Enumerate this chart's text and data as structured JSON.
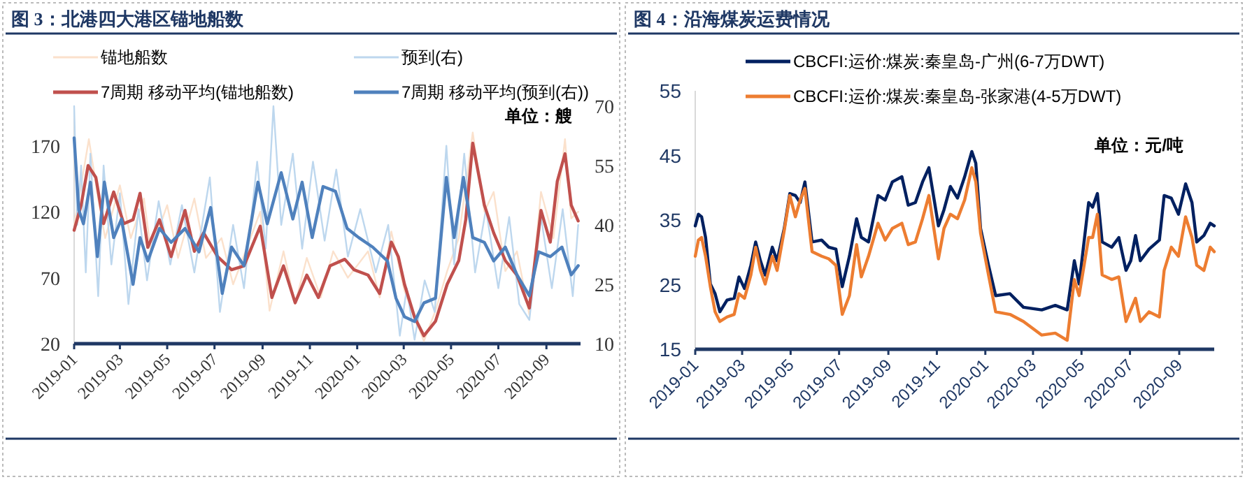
{
  "chart_data": [
    {
      "type": "line",
      "title": "图 3：北港四大港区锚地船数",
      "annotations": [
        "单位：艘"
      ],
      "legend": "top",
      "grid": false,
      "marker": "none",
      "line_style": "solid",
      "xlim": [
        "2019-01-01",
        "2020-10-15"
      ],
      "ylim": [
        20,
        200
      ],
      "y2lim": [
        10,
        70
      ],
      "xticks": [
        {
          "value": "2019-01-01",
          "label": "2019-01"
        },
        {
          "value": "2019-03-01",
          "label": "2019-03"
        },
        {
          "value": "2019-05-01",
          "label": "2019-05"
        },
        {
          "value": "2019-07-01",
          "label": "2019-07"
        },
        {
          "value": "2019-09-01",
          "label": "2019-09"
        },
        {
          "value": "2019-11-01",
          "label": "2019-11"
        },
        {
          "value": "2020-01-01",
          "label": "2020-01"
        },
        {
          "value": "2020-03-01",
          "label": "2020-03"
        },
        {
          "value": "2020-05-01",
          "label": "2020-05"
        },
        {
          "value": "2020-07-01",
          "label": "2020-07"
        },
        {
          "value": "2020-09-01",
          "label": "2020-09"
        }
      ],
      "yticks": [
        20,
        70,
        120,
        170
      ],
      "y2ticks": [
        10,
        25,
        40,
        55,
        70
      ],
      "series": [
        {
          "name": "锚地船数",
          "color": "#fbe1cc",
          "x": [
            "2019-01-01",
            "2019-01-10",
            "2019-01-20",
            "2019-02-01",
            "2019-02-10",
            "2019-03-01",
            "2019-03-15",
            "2019-04-01",
            "2019-04-10",
            "2019-05-01",
            "2019-05-15",
            "2019-06-05",
            "2019-06-20",
            "2019-07-10",
            "2019-07-25",
            "2019-08-10",
            "2019-08-29",
            "2019-09-10",
            "2019-09-28",
            "2019-10-13",
            "2019-10-28",
            "2019-11-15",
            "2019-12-01",
            "2019-12-20",
            "2020-01-15",
            "2020-01-30",
            "2020-02-14",
            "2020-03-02",
            "2020-03-15",
            "2020-03-27",
            "2020-04-11",
            "2020-04-26",
            "2020-05-11",
            "2020-05-29",
            "2020-06-13",
            "2020-06-25",
            "2020-07-10",
            "2020-07-25",
            "2020-08-10",
            "2020-08-25",
            "2020-09-10",
            "2020-09-25",
            "2020-10-03",
            "2020-10-12"
          ],
          "values": [
            110,
            140,
            175,
            130,
            100,
            140,
            100,
            130,
            90,
            125,
            85,
            130,
            85,
            100,
            65,
            90,
            120,
            45,
            90,
            50,
            85,
            55,
            90,
            70,
            90,
            55,
            105,
            60,
            40,
            22,
            45,
            75,
            100,
            180,
            120,
            135,
            75,
            90,
            42,
            135,
            100,
            175,
            115,
            120
          ]
        },
        {
          "name": "预到(右)",
          "axis": "y2",
          "color": "#bdd7ee",
          "x": [
            "2019-01-01",
            "2019-01-05",
            "2019-01-10",
            "2019-01-16",
            "2019-01-22",
            "2019-02-01",
            "2019-02-08",
            "2019-02-18",
            "2019-03-01",
            "2019-03-12",
            "2019-03-25",
            "2019-04-05",
            "2019-04-20",
            "2019-05-05",
            "2019-05-20",
            "2019-06-05",
            "2019-06-25",
            "2019-07-08",
            "2019-07-25",
            "2019-08-08",
            "2019-08-25",
            "2019-09-05",
            "2019-09-15",
            "2019-09-25",
            "2019-10-10",
            "2019-10-22",
            "2019-11-05",
            "2019-11-20",
            "2019-12-05",
            "2019-12-20",
            "2020-01-05",
            "2020-01-25",
            "2020-02-10",
            "2020-02-25",
            "2020-03-05",
            "2020-03-15",
            "2020-03-28",
            "2020-04-10",
            "2020-04-25",
            "2020-05-05",
            "2020-05-18",
            "2020-06-01",
            "2020-06-15",
            "2020-07-01",
            "2020-07-15",
            "2020-07-28",
            "2020-08-10",
            "2020-08-25",
            "2020-09-08",
            "2020-09-22",
            "2020-10-05",
            "2020-10-12"
          ],
          "values": [
            70,
            40,
            55,
            28,
            58,
            22,
            55,
            30,
            48,
            20,
            44,
            26,
            46,
            30,
            45,
            28,
            52,
            18,
            40,
            24,
            56,
            34,
            70,
            40,
            58,
            34,
            56,
            36,
            54,
            32,
            44,
            28,
            40,
            12,
            24,
            11,
            26,
            18,
            60,
            30,
            58,
            28,
            44,
            24,
            42,
            20,
            16,
            42,
            24,
            44,
            22,
            40
          ]
        },
        {
          "name": "7周期 移动平均(锚地船数)",
          "color": "#c0504d",
          "x": [
            "2019-01-01",
            "2019-01-10",
            "2019-01-19",
            "2019-01-29",
            "2019-02-08",
            "2019-02-21",
            "2019-03-06",
            "2019-03-18",
            "2019-03-27",
            "2019-04-06",
            "2019-04-21",
            "2019-05-06",
            "2019-05-24",
            "2019-06-05",
            "2019-06-17",
            "2019-07-05",
            "2019-07-23",
            "2019-08-08",
            "2019-08-29",
            "2019-09-13",
            "2019-09-28",
            "2019-10-13",
            "2019-10-28",
            "2019-11-12",
            "2019-11-27",
            "2019-12-16",
            "2019-12-28",
            "2020-01-15",
            "2020-01-30",
            "2020-02-14",
            "2020-02-23",
            "2020-03-02",
            "2020-03-15",
            "2020-03-27",
            "2020-04-11",
            "2020-04-26",
            "2020-05-11",
            "2020-05-20",
            "2020-05-29",
            "2020-06-13",
            "2020-06-25",
            "2020-07-10",
            "2020-07-25",
            "2020-08-10",
            "2020-08-25",
            "2020-09-06",
            "2020-09-15",
            "2020-09-25",
            "2020-10-03",
            "2020-10-12"
          ],
          "values": [
            106,
            125,
            155,
            146,
            111,
            135,
            111,
            114,
            134,
            93,
            114,
            86,
            121,
            90,
            104,
            86,
            76,
            79,
            109,
            55,
            79,
            51,
            72,
            55,
            79,
            84,
            76,
            72,
            58,
            97,
            86,
            65,
            40,
            26,
            37,
            65,
            83,
            114,
            172,
            125,
            104,
            83,
            72,
            47,
            121,
            97,
            143,
            164,
            125,
            113
          ]
        },
        {
          "name": "7周期 移动平均(预到(右))",
          "axis": "y2",
          "color": "#4f81bd",
          "x": [
            "2019-01-01",
            "2019-01-07",
            "2019-01-13",
            "2019-01-22",
            "2019-01-31",
            "2019-02-09",
            "2019-02-21",
            "2019-03-03",
            "2019-03-18",
            "2019-03-27",
            "2019-04-06",
            "2019-04-21",
            "2019-05-06",
            "2019-05-24",
            "2019-06-11",
            "2019-06-26",
            "2019-07-11",
            "2019-07-23",
            "2019-08-08",
            "2019-08-26",
            "2019-09-07",
            "2019-09-25",
            "2019-10-10",
            "2019-10-22",
            "2019-11-04",
            "2019-11-18",
            "2019-12-04",
            "2019-12-19",
            "2020-01-03",
            "2020-01-21",
            "2020-02-09",
            "2020-02-20",
            "2020-03-02",
            "2020-03-15",
            "2020-03-27",
            "2020-04-11",
            "2020-04-25",
            "2020-05-05",
            "2020-05-17",
            "2020-05-29",
            "2020-06-13",
            "2020-06-25",
            "2020-07-10",
            "2020-07-25",
            "2020-08-10",
            "2020-08-22",
            "2020-09-06",
            "2020-09-21",
            "2020-10-03",
            "2020-10-12"
          ],
          "values": [
            62,
            43.8,
            40.3,
            50.8,
            32,
            50.8,
            36.8,
            41.5,
            25,
            36.8,
            30.9,
            39.1,
            35.6,
            39.1,
            33.2,
            44.4,
            22.7,
            34.4,
            29.7,
            50.8,
            40.3,
            53.2,
            41.5,
            50.8,
            36.8,
            49.7,
            48.5,
            39.1,
            36.8,
            34.4,
            30.9,
            21.5,
            16.8,
            15.6,
            20.3,
            21.5,
            52,
            36.8,
            52,
            36.8,
            35.6,
            30.9,
            34.4,
            27.4,
            22.1,
            33.2,
            32,
            34.4,
            27.4,
            29.7
          ]
        }
      ]
    },
    {
      "type": "line",
      "title": "图 4：沿海煤炭运费情况",
      "annotations": [
        "单位：元/吨"
      ],
      "legend": "top",
      "grid": false,
      "marker": "none",
      "line_style": "solid",
      "xlim": [
        "2019-01-01",
        "2020-10-15"
      ],
      "ylim": [
        15,
        55
      ],
      "xticks": [
        {
          "value": "2019-01-01",
          "label": "2019-01"
        },
        {
          "value": "2019-03-01",
          "label": "2019-03"
        },
        {
          "value": "2019-05-01",
          "label": "2019-05"
        },
        {
          "value": "2019-07-01",
          "label": "2019-07"
        },
        {
          "value": "2019-09-01",
          "label": "2019-09"
        },
        {
          "value": "2019-11-01",
          "label": "2019-11"
        },
        {
          "value": "2020-01-01",
          "label": "2020-01"
        },
        {
          "value": "2020-03-01",
          "label": "2020-03"
        },
        {
          "value": "2020-05-01",
          "label": "2020-05"
        },
        {
          "value": "2020-07-01",
          "label": "2020-07"
        },
        {
          "value": "2020-09-01",
          "label": "2020-09"
        }
      ],
      "yticks": [
        15,
        25,
        35,
        45,
        55
      ],
      "x": [
        "2019-01-01",
        "2019-01-05",
        "2019-01-09",
        "2019-01-14",
        "2019-01-20",
        "2019-01-26",
        "2019-02-01",
        "2019-02-10",
        "2019-02-19",
        "2019-02-25",
        "2019-03-04",
        "2019-03-12",
        "2019-03-18",
        "2019-03-24",
        "2019-03-30",
        "2019-04-08",
        "2019-04-14",
        "2019-04-23",
        "2019-04-30",
        "2019-05-07",
        "2019-05-13",
        "2019-05-19",
        "2019-05-28",
        "2019-06-09",
        "2019-06-18",
        "2019-06-27",
        "2019-07-05",
        "2019-07-14",
        "2019-07-23",
        "2019-07-29",
        "2019-08-07",
        "2019-08-19",
        "2019-08-28",
        "2019-09-06",
        "2019-09-18",
        "2019-09-26",
        "2019-10-05",
        "2019-10-14",
        "2019-10-22",
        "2019-11-03",
        "2019-11-10",
        "2019-11-18",
        "2019-11-27",
        "2019-12-06",
        "2019-12-15",
        "2019-12-20",
        "2019-12-26",
        "2020-01-05",
        "2020-01-14",
        "2020-02-01",
        "2020-02-18",
        "2020-03-12",
        "2020-03-29",
        "2020-04-13",
        "2020-04-22",
        "2020-04-28",
        "2020-05-10",
        "2020-05-15",
        "2020-05-21",
        "2020-05-27",
        "2020-06-08",
        "2020-06-17",
        "2020-06-26",
        "2020-07-02",
        "2020-07-08",
        "2020-07-14",
        "2020-07-25",
        "2020-08-07",
        "2020-08-13",
        "2020-08-22",
        "2020-08-31",
        "2020-09-09",
        "2020-09-17",
        "2020-09-23",
        "2020-10-02",
        "2020-10-10",
        "2020-10-15"
      ],
      "series": [
        {
          "name": "CBCFI:运价:煤炭:秦皇岛-广州(6-7万DWT)",
          "color": "#002060",
          "values": [
            34.1,
            35.9,
            35.5,
            32.3,
            25.1,
            23.6,
            20.8,
            22.6,
            22.9,
            26.2,
            24.4,
            28,
            31.6,
            28.7,
            26.5,
            30.8,
            28.7,
            33.7,
            39.1,
            38.8,
            37.7,
            40.9,
            31.6,
            31.9,
            30.8,
            30.5,
            24.7,
            29.4,
            35.2,
            32.3,
            31.6,
            38.8,
            38.1,
            40.9,
            41.7,
            37.3,
            37.7,
            40.9,
            43.1,
            34.1,
            36.6,
            40.2,
            38.4,
            41.7,
            45.6,
            43.8,
            33.7,
            28,
            23.3,
            23.6,
            21.5,
            21.1,
            21.8,
            21.1,
            28.7,
            25.1,
            37.7,
            37,
            39.1,
            31.6,
            30.8,
            32.3,
            27.2,
            28.7,
            32.6,
            28.7,
            30.5,
            31.9,
            38.8,
            38.4,
            35.9,
            40.6,
            37.7,
            31.6,
            32.6,
            34.5,
            34.1
          ]
        },
        {
          "name": "CBCFI:运价:煤炭:秦皇岛-张家港(4-5万DWT)",
          "color": "#ed7d31",
          "values": [
            29.4,
            31.9,
            32.3,
            29.4,
            24.7,
            20.8,
            19.3,
            20,
            20.4,
            23.6,
            22.9,
            26.5,
            30.8,
            27.2,
            25.1,
            29.4,
            27.2,
            33.4,
            38.8,
            35.5,
            38.1,
            39.9,
            30.1,
            29.4,
            29,
            28,
            20.4,
            23.3,
            31.2,
            26.2,
            29.4,
            34.5,
            31.9,
            33.7,
            34.5,
            31.2,
            31.6,
            35.2,
            38.8,
            29,
            33.7,
            35.9,
            35.2,
            38.1,
            43.1,
            40.9,
            33,
            26.5,
            20.8,
            20.4,
            19.3,
            17.2,
            17.5,
            16.4,
            25.8,
            23.3,
            32.3,
            32.3,
            35.9,
            26.5,
            25.8,
            26.2,
            19.3,
            21.1,
            22.9,
            19.3,
            20.8,
            20,
            27.2,
            30.8,
            29.4,
            35.5,
            32.3,
            28,
            27.2,
            30.8,
            30.1
          ]
        }
      ]
    }
  ]
}
